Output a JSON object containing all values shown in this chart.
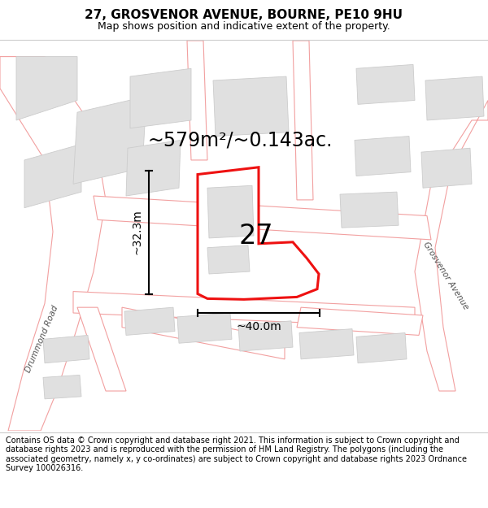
{
  "title": "27, GROSVENOR AVENUE, BOURNE, PE10 9HU",
  "subtitle": "Map shows position and indicative extent of the property.",
  "area_text": "~579m²/~0.143ac.",
  "number_label": "27",
  "width_label": "~40.0m",
  "height_label": "~32.3m",
  "footer_text": "Contains OS data © Crown copyright and database right 2021. This information is subject to Crown copyright and database rights 2023 and is reproduced with the permission of HM Land Registry. The polygons (including the associated geometry, namely x, y co-ordinates) are subject to Crown copyright and database rights 2023 Ordnance Survey 100026316.",
  "bg_color": "#ffffff",
  "map_bg": "#f7f7f7",
  "road_color": "#f2a0a0",
  "road_fill": "#ffffff",
  "building_color": "#e0e0e0",
  "building_edge": "#cccccc",
  "highlight_color": "#ee1111",
  "highlight_fill": "#ffffff",
  "street_label_left": "Drummond Road",
  "street_label_right": "Grosvenor Avenue",
  "title_fontsize": 11,
  "subtitle_fontsize": 9,
  "area_fontsize": 17,
  "number_fontsize": 24,
  "dim_fontsize": 10,
  "footer_fontsize": 7
}
